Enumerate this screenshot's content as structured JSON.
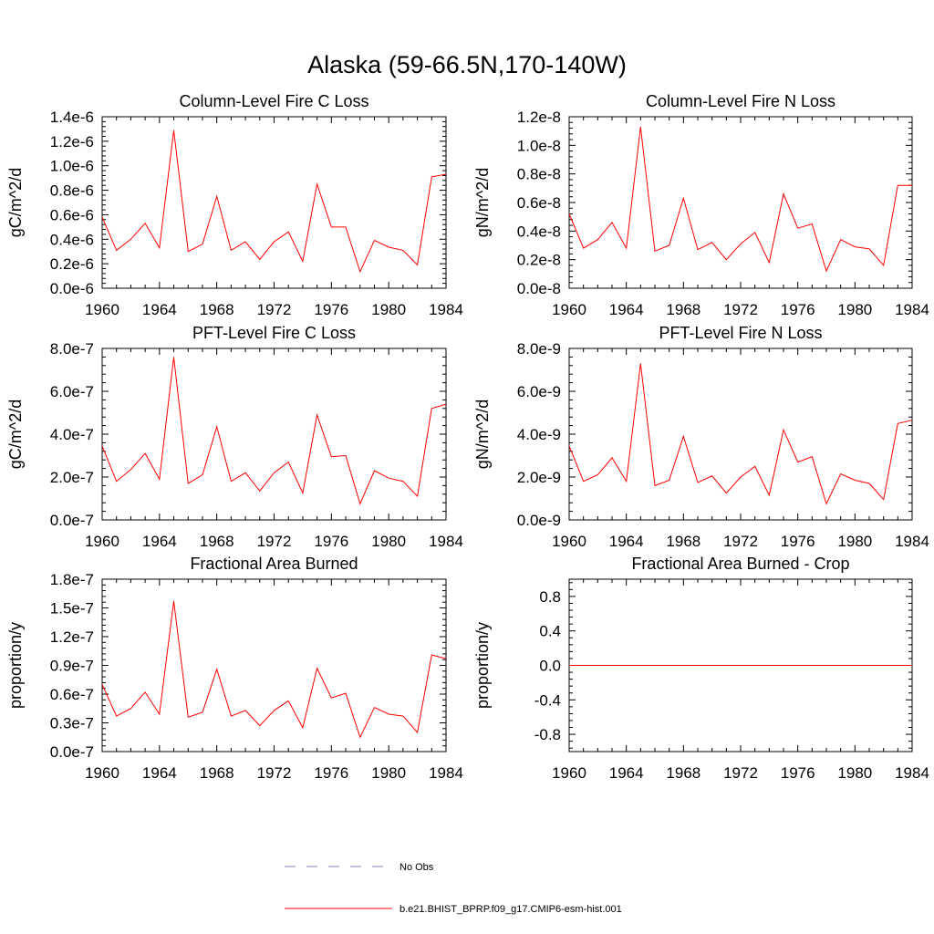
{
  "figure": {
    "title": "Alaska (59-66.5N,170-140W)",
    "legend": [
      {
        "label": "No Obs",
        "color": "#8080c8",
        "style": "dashed"
      },
      {
        "label": "b.e21.BHIST_BPRP.f09_g17.CMIP6-esm-hist.001",
        "color": "#ff0000",
        "style": "solid"
      }
    ]
  },
  "chart_data": [
    {
      "type": "line",
      "title": "Column-Level Fire C Loss",
      "ylabel": "gC/m^2/d",
      "xlabel": "",
      "xlim": [
        1960,
        1984
      ],
      "ylim": [
        0.0,
        1.4e-06
      ],
      "xticks": [
        "1960",
        "1964",
        "1968",
        "1972",
        "1976",
        "1980",
        "1984"
      ],
      "yticks": [
        "0.0e-6",
        "0.2e-6",
        "0.4e-6",
        "0.6e-6",
        "0.8e-6",
        "1.0e-6",
        "1.2e-6",
        "1.4e-6"
      ],
      "x": [
        1960,
        1961,
        1962,
        1963,
        1964,
        1965,
        1966,
        1967,
        1968,
        1969,
        1970,
        1971,
        1972,
        1973,
        1974,
        1975,
        1976,
        1977,
        1978,
        1979,
        1980,
        1981,
        1982,
        1983,
        1984
      ],
      "series": [
        {
          "name": "b.e21.BHIST_BPRP.f09_g17.CMIP6-esm-hist.001",
          "color": "#ff0000",
          "values": [
            5.8e-07,
            3.1e-07,
            4e-07,
            5.3e-07,
            3.3e-07,
            1.29e-06,
            3e-07,
            3.6e-07,
            7.5e-07,
            3.1e-07,
            3.8e-07,
            2.35e-07,
            3.8e-07,
            4.6e-07,
            2.2e-07,
            8.5e-07,
            5e-07,
            5e-07,
            1.35e-07,
            3.9e-07,
            3.35e-07,
            3.1e-07,
            1.9e-07,
            9.1e-07,
            9.3e-07
          ]
        }
      ]
    },
    {
      "type": "line",
      "title": "Column-Level Fire N Loss",
      "ylabel": "gN/m^2/d",
      "xlabel": "",
      "xlim": [
        1960,
        1984
      ],
      "ylim": [
        0.0,
        1.2e-08
      ],
      "xticks": [
        "1960",
        "1964",
        "1968",
        "1972",
        "1976",
        "1980",
        "1984"
      ],
      "yticks": [
        "0.0e-8",
        "0.2e-8",
        "0.4e-8",
        "0.6e-8",
        "0.8e-8",
        "1.0e-8",
        "1.2e-8"
      ],
      "x": [
        1960,
        1961,
        1962,
        1963,
        1964,
        1965,
        1966,
        1967,
        1968,
        1969,
        1970,
        1971,
        1972,
        1973,
        1974,
        1975,
        1976,
        1977,
        1978,
        1979,
        1980,
        1981,
        1982,
        1983,
        1984
      ],
      "series": [
        {
          "name": "b.e21.BHIST_BPRP.f09_g17.CMIP6-esm-hist.001",
          "color": "#ff0000",
          "values": [
            5.2e-09,
            2.8e-09,
            3.4e-09,
            4.6e-09,
            2.8e-09,
            1.13e-08,
            2.6e-09,
            3e-09,
            6.3e-09,
            2.7e-09,
            3.2e-09,
            2e-09,
            3.1e-09,
            3.9e-09,
            1.8e-09,
            6.6e-09,
            4.2e-09,
            4.5e-09,
            1.2e-09,
            3.4e-09,
            2.9e-09,
            2.75e-09,
            1.6e-09,
            7.2e-09,
            7.2e-09
          ]
        }
      ]
    },
    {
      "type": "line",
      "title": "PFT-Level Fire C Loss",
      "ylabel": "gC/m^2/d",
      "xlabel": "",
      "xlim": [
        1960,
        1984
      ],
      "ylim": [
        0.0,
        8e-07
      ],
      "xticks": [
        "1960",
        "1964",
        "1968",
        "1972",
        "1976",
        "1980",
        "1984"
      ],
      "yticks": [
        "0.0e-7",
        "2.0e-7",
        "4.0e-7",
        "6.0e-7",
        "8.0e-7"
      ],
      "x": [
        1960,
        1961,
        1962,
        1963,
        1964,
        1965,
        1966,
        1967,
        1968,
        1969,
        1970,
        1971,
        1972,
        1973,
        1974,
        1975,
        1976,
        1977,
        1978,
        1979,
        1980,
        1981,
        1982,
        1983,
        1984
      ],
      "series": [
        {
          "name": "b.e21.BHIST_BPRP.f09_g17.CMIP6-esm-hist.001",
          "color": "#ff0000",
          "values": [
            3.45e-07,
            1.8e-07,
            2.35e-07,
            3.1e-07,
            1.9e-07,
            7.6e-07,
            1.7e-07,
            2.1e-07,
            4.35e-07,
            1.8e-07,
            2.2e-07,
            1.35e-07,
            2.2e-07,
            2.7e-07,
            1.25e-07,
            4.9e-07,
            2.95e-07,
            3e-07,
            7.5e-08,
            2.3e-07,
            1.95e-07,
            1.8e-07,
            1.1e-07,
            5.2e-07,
            5.4e-07
          ]
        }
      ]
    },
    {
      "type": "line",
      "title": "PFT-Level Fire N Loss",
      "ylabel": "gN/m^2/d",
      "xlabel": "",
      "xlim": [
        1960,
        1984
      ],
      "ylim": [
        0.0,
        8e-09
      ],
      "xticks": [
        "1960",
        "1964",
        "1968",
        "1972",
        "1976",
        "1980",
        "1984"
      ],
      "yticks": [
        "0.0e-9",
        "2.0e-9",
        "4.0e-9",
        "6.0e-9",
        "8.0e-9"
      ],
      "x": [
        1960,
        1961,
        1962,
        1963,
        1964,
        1965,
        1966,
        1967,
        1968,
        1969,
        1970,
        1971,
        1972,
        1973,
        1974,
        1975,
        1976,
        1977,
        1978,
        1979,
        1980,
        1981,
        1982,
        1983,
        1984
      ],
      "series": [
        {
          "name": "b.e21.BHIST_BPRP.f09_g17.CMIP6-esm-hist.001",
          "color": "#ff0000",
          "values": [
            3.45e-09,
            1.8e-09,
            2.1e-09,
            2.9e-09,
            1.8e-09,
            7.3e-09,
            1.6e-09,
            1.85e-09,
            3.9e-09,
            1.75e-09,
            2.05e-09,
            1.25e-09,
            2e-09,
            2.5e-09,
            1.15e-09,
            4.2e-09,
            2.7e-09,
            2.95e-09,
            7.5e-10,
            2.15e-09,
            1.85e-09,
            1.7e-09,
            9.5e-10,
            4.5e-09,
            4.65e-09
          ]
        }
      ]
    },
    {
      "type": "line",
      "title": "Fractional Area Burned",
      "ylabel": "proportion/y",
      "xlabel": "",
      "xlim": [
        1960,
        1984
      ],
      "ylim": [
        0.0,
        1.8e-07
      ],
      "xticks": [
        "1960",
        "1964",
        "1968",
        "1972",
        "1976",
        "1980",
        "1984"
      ],
      "yticks": [
        "0.0e-7",
        "0.3e-7",
        "0.6e-7",
        "0.9e-7",
        "1.2e-7",
        "1.5e-7",
        "1.8e-7"
      ],
      "x": [
        1960,
        1961,
        1962,
        1963,
        1964,
        1965,
        1966,
        1967,
        1968,
        1969,
        1970,
        1971,
        1972,
        1973,
        1974,
        1975,
        1976,
        1977,
        1978,
        1979,
        1980,
        1981,
        1982,
        1983,
        1984
      ],
      "series": [
        {
          "name": "b.e21.BHIST_BPRP.f09_g17.CMIP6-esm-hist.001",
          "color": "#ff0000",
          "values": [
            7e-08,
            3.7e-08,
            4.5e-08,
            6.2e-08,
            3.9e-08,
            1.57e-07,
            3.6e-08,
            4.1e-08,
            8.6e-08,
            3.7e-08,
            4.3e-08,
            2.7e-08,
            4.3e-08,
            5.3e-08,
            2.5e-08,
            8.7e-08,
            5.6e-08,
            6.1e-08,
            1.5e-08,
            4.6e-08,
            3.9e-08,
            3.7e-08,
            2e-08,
            1.01e-07,
            9.7e-08
          ]
        }
      ]
    },
    {
      "type": "line",
      "title": "Fractional Area Burned - Crop",
      "ylabel": "proportion/y",
      "xlabel": "",
      "xlim": [
        1960,
        1984
      ],
      "ylim": [
        -1.0,
        1.0
      ],
      "xticks": [
        "1960",
        "1964",
        "1968",
        "1972",
        "1976",
        "1980",
        "1984"
      ],
      "yticks": [
        "-0.8",
        "-0.4",
        "0.0",
        "0.4",
        "0.8"
      ],
      "x": [
        1960,
        1961,
        1962,
        1963,
        1964,
        1965,
        1966,
        1967,
        1968,
        1969,
        1970,
        1971,
        1972,
        1973,
        1974,
        1975,
        1976,
        1977,
        1978,
        1979,
        1980,
        1981,
        1982,
        1983,
        1984
      ],
      "series": [
        {
          "name": "b.e21.BHIST_BPRP.f09_g17.CMIP6-esm-hist.001",
          "color": "#ff0000",
          "values": [
            0,
            0,
            0,
            0,
            0,
            0,
            0,
            0,
            0,
            0,
            0,
            0,
            0,
            0,
            0,
            0,
            0,
            0,
            0,
            0,
            0,
            0,
            0,
            0,
            0
          ]
        }
      ]
    }
  ]
}
